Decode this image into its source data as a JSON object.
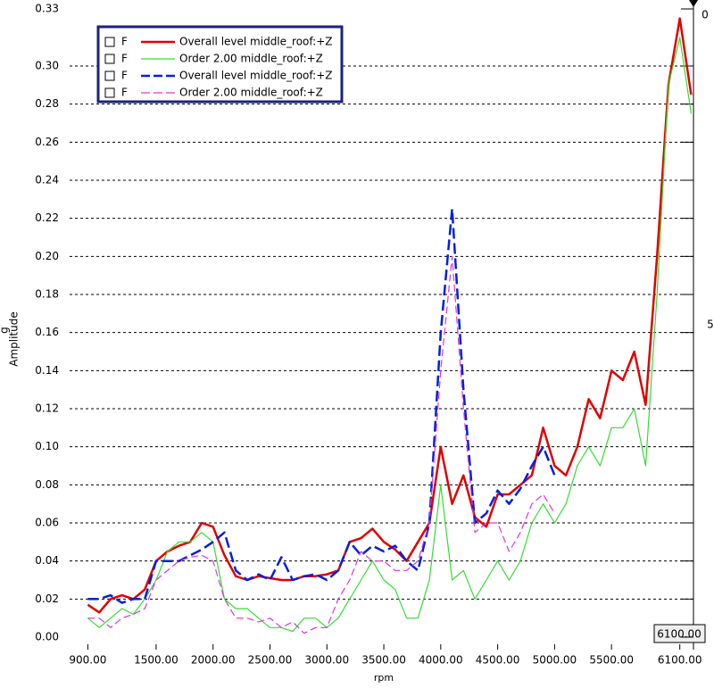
{
  "chart_data": {
    "type": "line",
    "x_label": "rpm",
    "y_label": "Amplitude",
    "y_unit": "g",
    "cursor_label": "6100.00",
    "right_labels": [
      "0",
      "5"
    ],
    "x": [
      900,
      1000,
      1100,
      1200,
      1300,
      1400,
      1500,
      1600,
      1700,
      1800,
      1900,
      2000,
      2100,
      2200,
      2300,
      2400,
      2500,
      2600,
      2700,
      2800,
      2900,
      3000,
      3100,
      3200,
      3300,
      3400,
      3500,
      3600,
      3700,
      3800,
      3900,
      4000,
      4100,
      4200,
      4300,
      4400,
      4500,
      4600,
      4700,
      4800,
      4900,
      5000,
      5100,
      5200,
      5300,
      5400,
      5500,
      5600,
      5700,
      5800,
      5900,
      6000,
      6100,
      6200
    ],
    "xlim": [
      740,
      6220
    ],
    "xticks": [
      {
        "value": 900,
        "label": "900.00"
      },
      {
        "value": 1500,
        "label": "1500.00"
      },
      {
        "value": 2000,
        "label": "2000.00"
      },
      {
        "value": 2500,
        "label": "2500.00"
      },
      {
        "value": 3000,
        "label": "3000.00"
      },
      {
        "value": 3500,
        "label": "3500.00"
      },
      {
        "value": 4000,
        "label": "4000.00"
      },
      {
        "value": 4500,
        "label": "4500.00"
      },
      {
        "value": 5000,
        "label": "5000.00"
      },
      {
        "value": 5500,
        "label": "5500.00"
      },
      {
        "value": 6100,
        "label": "6100.00"
      }
    ],
    "ylim": [
      0,
      0.33
    ],
    "yticks": [
      {
        "value": 0,
        "label": "0.00"
      },
      {
        "value": 0.02,
        "label": "0.02"
      },
      {
        "value": 0.04,
        "label": "0.04"
      },
      {
        "value": 0.06,
        "label": "0.06"
      },
      {
        "value": 0.08,
        "label": "0.08"
      },
      {
        "value": 0.1,
        "label": "0.10"
      },
      {
        "value": 0.12,
        "label": "0.12"
      },
      {
        "value": 0.14,
        "label": "0.14"
      },
      {
        "value": 0.16,
        "label": "0.16"
      },
      {
        "value": 0.18,
        "label": "0.18"
      },
      {
        "value": 0.2,
        "label": "0.20"
      },
      {
        "value": 0.22,
        "label": "0.22"
      },
      {
        "value": 0.24,
        "label": "0.24"
      },
      {
        "value": 0.26,
        "label": "0.26"
      },
      {
        "value": 0.28,
        "label": "0.28"
      },
      {
        "value": 0.3,
        "label": "0.30"
      },
      0.33
    ],
    "grid": true,
    "series": [
      {
        "name": "Overall level middle_roof:+Z",
        "flag": "F",
        "color": "#e00000",
        "width": 2.5,
        "dashed": false,
        "values": [
          0.017,
          0.013,
          0.02,
          0.022,
          0.02,
          0.025,
          0.04,
          0.045,
          0.048,
          0.05,
          0.06,
          0.058,
          0.043,
          0.032,
          0.03,
          0.032,
          0.031,
          0.03,
          0.03,
          0.032,
          0.032,
          0.033,
          0.035,
          0.05,
          0.052,
          0.057,
          0.05,
          0.046,
          0.04,
          0.05,
          0.06,
          0.1,
          0.07,
          0.085,
          0.063,
          0.058,
          0.075,
          0.075,
          0.08,
          0.085,
          0.11,
          0.09,
          0.085,
          0.1,
          0.125,
          0.115,
          0.14,
          0.135,
          0.15,
          0.122,
          0.2,
          0.29,
          0.325,
          0.285
        ]
      },
      {
        "name": "Order 2.00 middle_roof:+Z",
        "flag": "F",
        "color": "#33dd33",
        "width": 1.2,
        "dashed": false,
        "values": [
          0.01,
          0.005,
          0.01,
          0.015,
          0.012,
          0.02,
          0.03,
          0.045,
          0.05,
          0.05,
          0.055,
          0.05,
          0.02,
          0.015,
          0.015,
          0.01,
          0.005,
          0.005,
          0.003,
          0.01,
          0.01,
          0.005,
          0.01,
          0.02,
          0.03,
          0.04,
          0.03,
          0.025,
          0.01,
          0.01,
          0.03,
          0.08,
          0.03,
          0.035,
          0.02,
          0.03,
          0.04,
          0.03,
          0.04,
          0.06,
          0.07,
          0.06,
          0.07,
          0.09,
          0.1,
          0.09,
          0.11,
          0.11,
          0.12,
          0.09,
          0.18,
          0.29,
          0.315,
          0.275
        ]
      },
      {
        "name": "Overall level middle_roof:+Z",
        "flag": "F",
        "color": "#0020e0",
        "width": 2.5,
        "dashed": true,
        "values": [
          0.02,
          0.02,
          0.022,
          0.018,
          0.02,
          0.02,
          0.04,
          0.04,
          0.04,
          0.043,
          0.046,
          0.05,
          0.055,
          0.035,
          0.03,
          0.033,
          0.03,
          0.042,
          0.03,
          0.032,
          0.033,
          0.03,
          0.035,
          0.05,
          0.043,
          0.048,
          0.045,
          0.048,
          0.04,
          0.035,
          0.06,
          0.16,
          0.225,
          0.13,
          0.06,
          0.065,
          0.077,
          0.07,
          0.078,
          0.09,
          0.1,
          0.085,
          null,
          null,
          null,
          null,
          null,
          null,
          null,
          null,
          null,
          null,
          null,
          null
        ]
      },
      {
        "name": "Order 2.00 middle_roof:+Z",
        "flag": "F",
        "color": "#dd33dd",
        "width": 1.2,
        "dashed": true,
        "values": [
          0.01,
          0.01,
          0.005,
          0.01,
          0.012,
          0.015,
          0.03,
          0.035,
          0.04,
          0.042,
          0.043,
          0.04,
          0.02,
          0.01,
          0.01,
          0.008,
          0.01,
          0.005,
          0.008,
          0.002,
          0.005,
          0.005,
          0.02,
          0.03,
          0.045,
          0.04,
          0.04,
          0.035,
          0.035,
          0.04,
          0.06,
          0.14,
          0.2,
          0.12,
          0.055,
          0.06,
          0.06,
          0.045,
          0.055,
          0.07,
          0.075,
          0.065,
          null,
          null,
          null,
          null,
          null,
          null,
          null,
          null,
          null,
          null,
          null,
          null
        ]
      }
    ]
  }
}
